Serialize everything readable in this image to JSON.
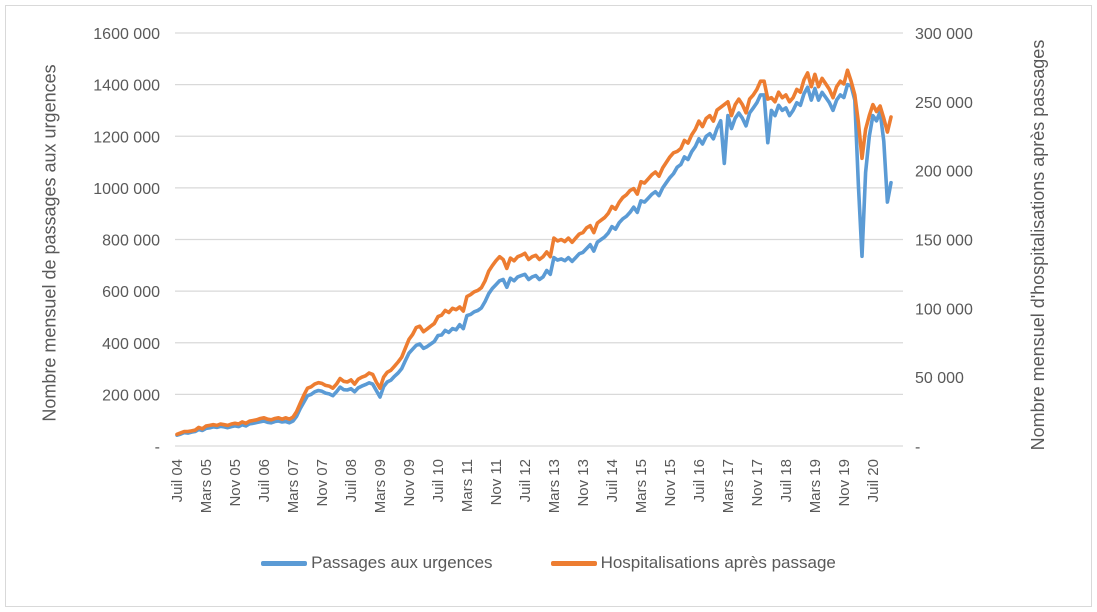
{
  "figure": {
    "background": "#FFFFFF",
    "border_color": "#D9D9D9",
    "gridline_color": "#D9D9D9",
    "text_color": "#595959"
  },
  "left_axis": {
    "title": "Nombre mensuel de passages aux urgences",
    "tick_labels": [
      "1600 000",
      "1400 000",
      "1200 000",
      "1000 000",
      "800 000",
      "600 000",
      "400 000",
      "200 000",
      "-"
    ],
    "min": 0,
    "max": 1600000,
    "step": 200000
  },
  "right_axis": {
    "title": "Nombre mensuel d'hospitalisations après passages",
    "tick_labels": [
      "300 000",
      "250 000",
      "200 000",
      "150 000",
      "100 000",
      "50 000",
      "-"
    ],
    "min": 0,
    "max": 300000,
    "step": 50000
  },
  "x_axis": {
    "tick_labels": [
      "Juil 04",
      "Mars 05",
      "Nov 05",
      "Juil 06",
      "Mars 07",
      "Nov 07",
      "Juil 08",
      "Mars 09",
      "Nov 09",
      "Juil 10",
      "Mars 11",
      "Nov 11",
      "Juil 12",
      "Mars 13",
      "Nov 13",
      "Juil 14",
      "Mars 15",
      "Nov 15",
      "Juil 16",
      "Mars 17",
      "Nov 17",
      "Juil 18",
      "Mars 19",
      "Nov 19",
      "Juil 20"
    ],
    "tick_interval_months": 8
  },
  "legend": {
    "items": [
      {
        "label": "Passages aux urgences",
        "color": "#5B9BD5"
      },
      {
        "label": "Hospitalisations après passage",
        "color": "#ED7D31"
      }
    ]
  },
  "chart_data": {
    "type": "line",
    "title": "",
    "x_frequency": "monthly",
    "x_start": "Juillet 2004",
    "x_end": "Décembre 2020",
    "x_tick_labels": [
      "Juil 04",
      "Mars 05",
      "Nov 05",
      "Juil 06",
      "Mars 07",
      "Nov 07",
      "Juil 08",
      "Mars 09",
      "Nov 09",
      "Juil 10",
      "Mars 11",
      "Nov 11",
      "Juil 12",
      "Mars 13",
      "Nov 13",
      "Juil 14",
      "Mars 15",
      "Nov 15",
      "Juil 16",
      "Mars 17",
      "Nov 17",
      "Juil 18",
      "Mars 19",
      "Nov 19",
      "Juil 20"
    ],
    "grid": "horizontal",
    "legend_position": "bottom",
    "left_ylim": [
      0,
      1600000
    ],
    "right_ylim": [
      0,
      300000
    ],
    "series": [
      {
        "name": "Passages aux urgences",
        "axis": "left",
        "color": "#5B9BD5",
        "values": [
          42000,
          46000,
          52000,
          50000,
          54000,
          56000,
          64000,
          60000,
          68000,
          70000,
          74000,
          72000,
          76000,
          74000,
          71000,
          75000,
          78000,
          75000,
          82000,
          78000,
          86000,
          88000,
          91000,
          94000,
          97000,
          92000,
          90000,
          95000,
          97000,
          93000,
          95000,
          90000,
          97000,
          115000,
          145000,
          170000,
          195000,
          200000,
          210000,
          215000,
          212000,
          205000,
          202000,
          195000,
          210000,
          228000,
          218000,
          217000,
          222000,
          210000,
          225000,
          232000,
          238000,
          245000,
          240000,
          215000,
          190000,
          230000,
          248000,
          255000,
          270000,
          283000,
          300000,
          330000,
          360000,
          375000,
          390000,
          395000,
          378000,
          385000,
          395000,
          405000,
          428000,
          430000,
          448000,
          440000,
          455000,
          450000,
          470000,
          455000,
          505000,
          510000,
          520000,
          525000,
          535000,
          560000,
          590000,
          610000,
          625000,
          640000,
          645000,
          615000,
          650000,
          640000,
          655000,
          660000,
          665000,
          645000,
          655000,
          660000,
          645000,
          655000,
          680000,
          665000,
          730000,
          720000,
          725000,
          718000,
          730000,
          715000,
          730000,
          745000,
          750000,
          765000,
          780000,
          755000,
          790000,
          800000,
          810000,
          825000,
          850000,
          840000,
          865000,
          880000,
          890000,
          905000,
          925000,
          905000,
          950000,
          945000,
          960000,
          975000,
          985000,
          970000,
          1000000,
          1020000,
          1040000,
          1055000,
          1080000,
          1090000,
          1120000,
          1110000,
          1140000,
          1160000,
          1190000,
          1170000,
          1200000,
          1210000,
          1190000,
          1230000,
          1260000,
          1095000,
          1280000,
          1230000,
          1270000,
          1290000,
          1270000,
          1240000,
          1290000,
          1310000,
          1330000,
          1360000,
          1360000,
          1175000,
          1300000,
          1280000,
          1320000,
          1300000,
          1310000,
          1280000,
          1300000,
          1330000,
          1320000,
          1365000,
          1390000,
          1340000,
          1385000,
          1340000,
          1370000,
          1350000,
          1330000,
          1300000,
          1340000,
          1360000,
          1350000,
          1400000,
          1395000,
          1340000,
          1010000,
          735000,
          1060000,
          1200000,
          1280000,
          1260000,
          1295000,
          1180000,
          945000,
          1020000
        ]
      },
      {
        "name": "Hospitalisations après passage",
        "axis": "right",
        "color": "#ED7D31",
        "values": [
          8500,
          9500,
          10500,
          10500,
          11000,
          11500,
          13500,
          12500,
          14500,
          15000,
          15500,
          15000,
          16000,
          15500,
          15000,
          16000,
          16500,
          16000,
          17500,
          16500,
          18000,
          18500,
          19000,
          20000,
          20500,
          19500,
          19000,
          20000,
          20500,
          19500,
          20500,
          19500,
          21000,
          25000,
          31000,
          37000,
          42000,
          43000,
          45000,
          46000,
          45500,
          44000,
          43500,
          42000,
          45000,
          49000,
          47000,
          46500,
          48000,
          45000,
          48500,
          50000,
          51000,
          53000,
          52000,
          46500,
          42000,
          50000,
          53500,
          55000,
          58000,
          61000,
          64500,
          71000,
          77500,
          81000,
          86000,
          87000,
          83000,
          85000,
          87000,
          89000,
          94000,
          95000,
          98500,
          97000,
          100000,
          99000,
          101000,
          98000,
          108500,
          110000,
          112000,
          113000,
          115000,
          120000,
          127000,
          131000,
          134500,
          137500,
          135500,
          129000,
          136500,
          134500,
          137500,
          138500,
          140000,
          135500,
          137500,
          138500,
          135500,
          137500,
          141000,
          137500,
          151000,
          149000,
          150000,
          148500,
          151000,
          148000,
          151000,
          154000,
          155000,
          158500,
          160000,
          155000,
          162000,
          164000,
          166000,
          169000,
          174000,
          172000,
          177000,
          180500,
          182500,
          185500,
          187000,
          183000,
          192000,
          191000,
          194000,
          197000,
          199000,
          196000,
          202000,
          206000,
          210000,
          213000,
          214000,
          216000,
          222000,
          220000,
          226000,
          230000,
          236000,
          232000,
          238000,
          240000,
          236000,
          244000,
          246000,
          248000,
          250000,
          240000,
          248000,
          252000,
          248000,
          242000,
          252000,
          255000,
          259000,
          265000,
          265000,
          252000,
          253000,
          250000,
          257000,
          253000,
          255000,
          250000,
          253000,
          259000,
          257000,
          266000,
          271000,
          261000,
          270000,
          261000,
          267000,
          263000,
          259000,
          253000,
          261000,
          265000,
          263000,
          273000,
          265000,
          255000,
          235000,
          209000,
          230000,
          240000,
          248000,
          243000,
          247000,
          238000,
          228000,
          239000
        ]
      }
    ]
  }
}
